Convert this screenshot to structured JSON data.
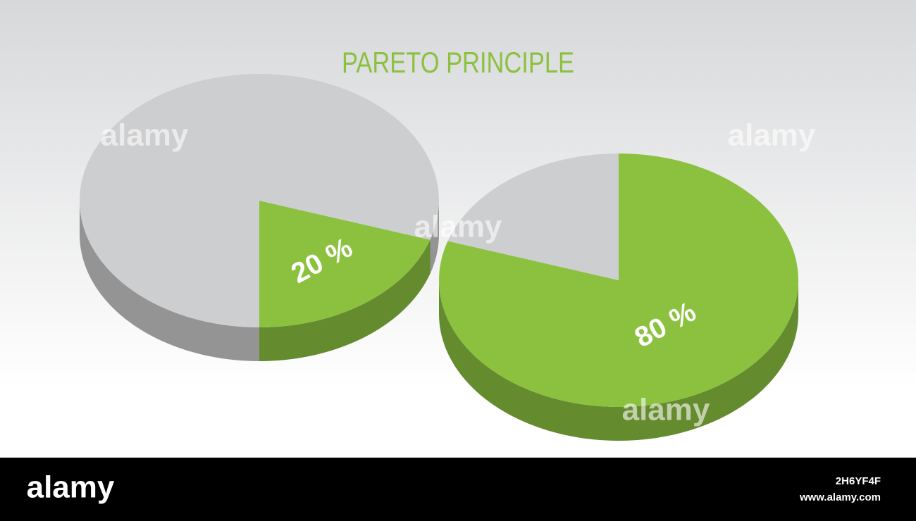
{
  "title": "PARETO PRINCIPLE",
  "chart_data": [
    {
      "type": "pie",
      "values": [
        20,
        80
      ],
      "value_labels": [
        "20 %",
        null
      ],
      "colors": [
        "#8bc13f",
        "#cdcecf"
      ]
    },
    {
      "type": "pie",
      "values": [
        80,
        20
      ],
      "value_labels": [
        "80 %",
        null
      ],
      "colors": [
        "#8bc13f",
        "#cdcecf"
      ]
    }
  ],
  "watermark": {
    "brand": "alamy",
    "image_id": "2H6YF4F",
    "url": "www.alamy.com"
  }
}
